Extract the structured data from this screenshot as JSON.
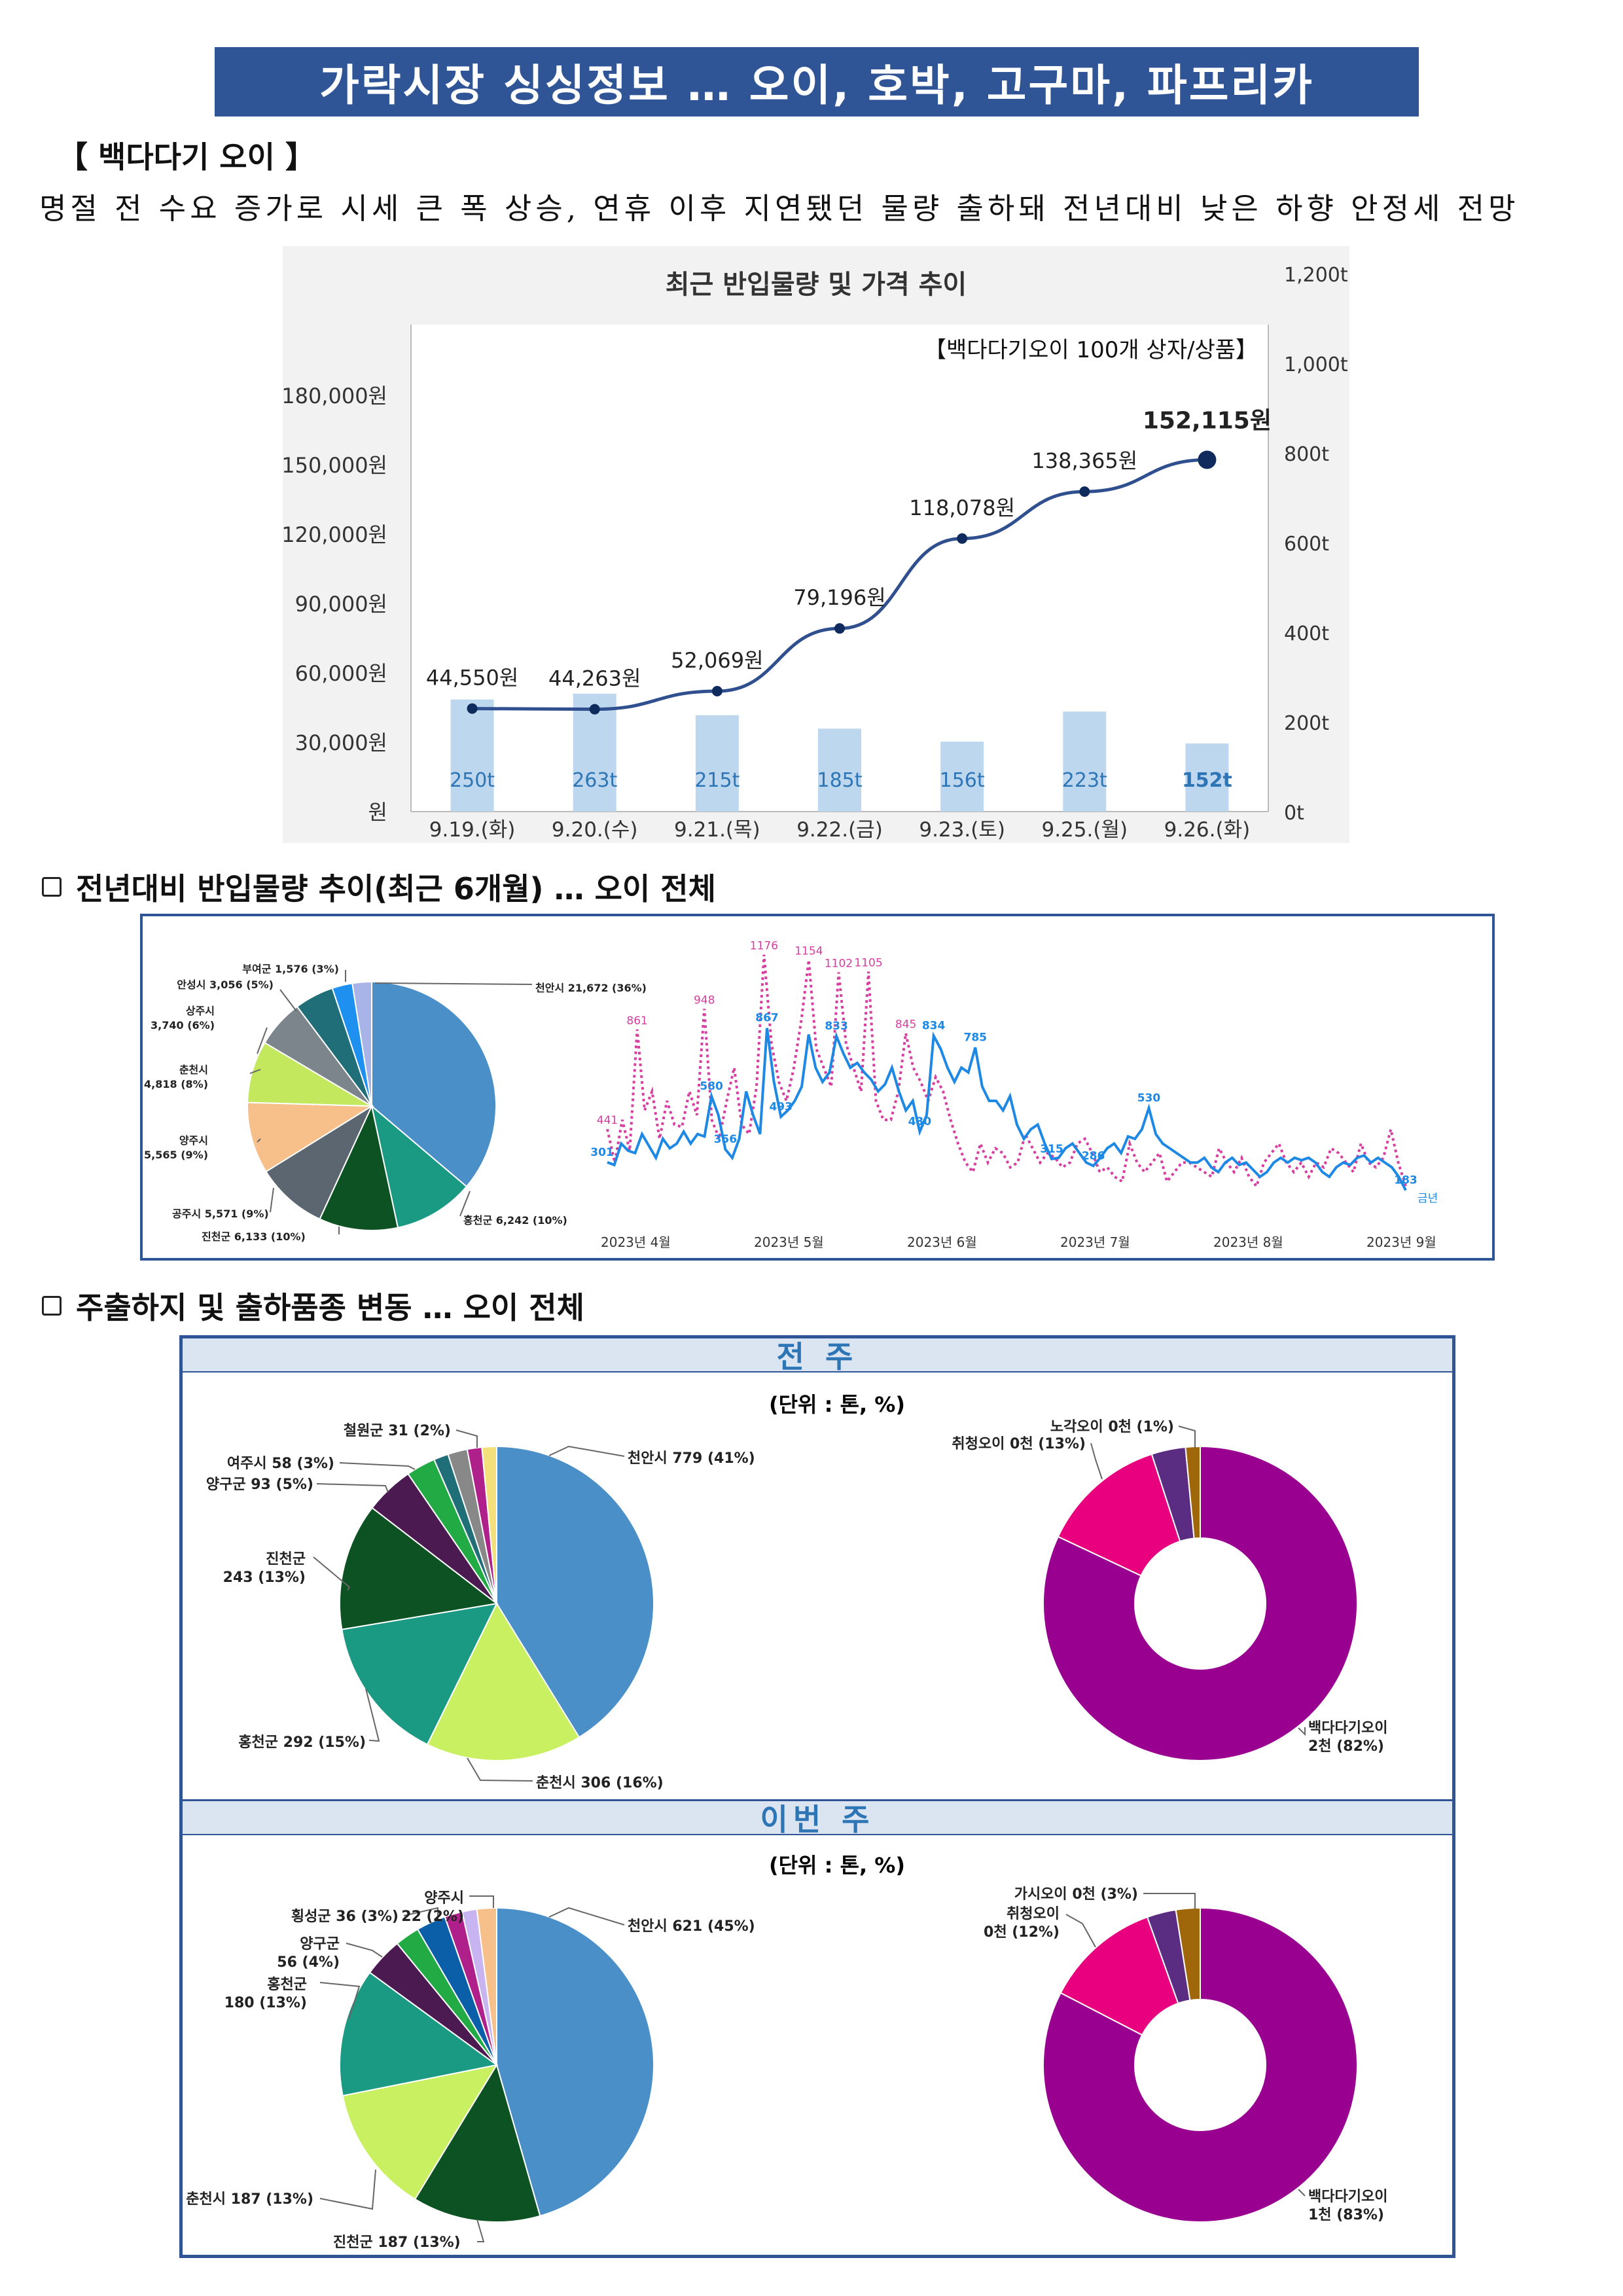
{
  "title": "가락시장 싱싱정보 … 오이, 호박, 고구마, 파프리카",
  "section1": {
    "heading": "【 백다다기 오이 】",
    "summary": "명절 전 수요 증가로 시세 큰 폭 상승, 연휴 이후 지연됐던 물량 출하돼 전년대비 낮은 하향 안정세 전망"
  },
  "section2": {
    "heading": "전년대비 반입물량 추이(최근 6개월) … 오이 전체"
  },
  "section3": {
    "heading": "주출하지 및 출하품종 변동 … 오이 전체",
    "prev_band": "전 주",
    "this_band": "이번 주",
    "unit_label": "(단위 : 톤, %)"
  },
  "colors": {
    "banner": "#2f5597",
    "price_line": "#2f4f8f",
    "volume_bar": "#bdd7ee",
    "line_blue": "#1e88e5",
    "line_pink": "#d63fa0",
    "donut_main": "#990090"
  },
  "chart_data": [
    {
      "type": "bar",
      "title": "최근 반입물량 및 가격 추이",
      "annotation": "【백다다기오이 100개 상자/상품】",
      "categories": [
        "9.19.(화)",
        "9.20.(수)",
        "9.21.(목)",
        "9.22.(금)",
        "9.23.(토)",
        "9.25.(월)",
        "9.26.(화)"
      ],
      "series": [
        {
          "name": "",
          "kind": "line",
          "axis": "left",
          "values": [
            44550,
            44263,
            52069,
            79196,
            118078,
            138365,
            152115
          ],
          "labels": [
            "44,550원",
            "44,263원",
            "52,069원",
            "79,196원",
            "118,078원",
            "138,365원",
            "152,115원"
          ]
        },
        {
          "name": "",
          "kind": "bar",
          "axis": "right",
          "values": [
            250,
            263,
            215,
            185,
            156,
            223,
            152
          ],
          "labels": [
            "250t",
            "263t",
            "215t",
            "185t",
            "156t",
            "223t",
            "152t"
          ]
        }
      ],
      "left_ticks": [
        "원",
        "30,000원",
        "60,000원",
        "90,000원",
        "120,000원",
        "150,000원",
        "180,000원"
      ],
      "left_range": [
        0,
        180000
      ],
      "right_ticks": [
        "0t",
        "200t",
        "400t",
        "600t",
        "800t",
        "1,000t",
        "1,200t"
      ],
      "right_range": [
        0,
        1200
      ]
    },
    {
      "type": "pie",
      "slices": [
        {
          "label": "천안시 21,672 (36%)",
          "value": 21672,
          "color": "#4a8fc7"
        },
        {
          "label": "홍천군 6,242 (10%)",
          "value": 6242,
          "color": "#1b9a83"
        },
        {
          "label": "진천군 6,133 (10%)",
          "value": 6133,
          "color": "#0d5222"
        },
        {
          "label": "공주시 5,571 (9%)",
          "value": 5571,
          "color": "#5b6670"
        },
        {
          "label": "양주시 5,565 (9%)",
          "value": 5565,
          "color": "#f7c08a"
        },
        {
          "label": "춘천시 4,818 (8%)",
          "value": 4818,
          "color": "#c3e85d"
        },
        {
          "label": "상주시 3,740 (6%)",
          "value": 3740,
          "color": "#7d858c"
        },
        {
          "label": "안성시 3,056 (5%)",
          "value": 3056,
          "color": "#1f6e78"
        },
        {
          "label": "부여군 1,576 (3%)",
          "value": 1576,
          "color": "#1e90f0"
        },
        {
          "label": "",
          "value": 1500,
          "color": "#a8b4e8"
        }
      ]
    },
    {
      "type": "line",
      "x_ticks": [
        "2023년 4월",
        "2023년 5월",
        "2023년 6월",
        "2023년 7월",
        "2023년 8월",
        "2023년 9월"
      ],
      "series": [
        {
          "name": "금년",
          "values": [
            301,
            290,
            380,
            350,
            340,
            420,
            370,
            320,
            400,
            360,
            380,
            430,
            380,
            420,
            410,
            580,
            500,
            356,
            320,
            400,
            600,
            500,
            420,
            867,
            640,
            493,
            520,
            560,
            620,
            840,
            700,
            640,
            680,
            833,
            760,
            700,
            720,
            680,
            650,
            600,
            630,
            700,
            600,
            520,
            560,
            430,
            500,
            834,
            780,
            700,
            640,
            700,
            680,
            785,
            620,
            560,
            560,
            520,
            580,
            460,
            400,
            440,
            460,
            380,
            315,
            320,
            360,
            380,
            340,
            300,
            286,
            320,
            360,
            380,
            340,
            410,
            400,
            440,
            530,
            420,
            380,
            360,
            340,
            320,
            300,
            300,
            320,
            280,
            260,
            300,
            320,
            290,
            300,
            270,
            240,
            260,
            300,
            320,
            300,
            320,
            310,
            320,
            300,
            260,
            240,
            280,
            300,
            290,
            320,
            330,
            300,
            320,
            300,
            280,
            240,
            183
          ],
          "labels": [
            {
              "i": 0,
              "text": "301"
            },
            {
              "i": 15,
              "text": "580"
            },
            {
              "i": 17,
              "text": "356"
            },
            {
              "i": 23,
              "text": "867"
            },
            {
              "i": 25,
              "text": "493"
            },
            {
              "i": 33,
              "text": "833"
            },
            {
              "i": 45,
              "text": "430"
            },
            {
              "i": 47,
              "text": "834"
            },
            {
              "i": 53,
              "text": "785"
            },
            {
              "i": 64,
              "text": "315"
            },
            {
              "i": 70,
              "text": "286"
            },
            {
              "i": 78,
              "text": "530"
            },
            {
              "i": 115,
              "text": "183"
            }
          ]
        },
        {
          "name": "",
          "values": [
            441,
            300,
            480,
            350,
            861,
            520,
            600,
            400,
            560,
            460,
            450,
            600,
            500,
            948,
            480,
            400,
            560,
            700,
            460,
            420,
            620,
            1176,
            800,
            640,
            560,
            700,
            900,
            1154,
            780,
            700,
            620,
            1102,
            800,
            700,
            600,
            1105,
            560,
            480,
            480,
            600,
            845,
            700,
            640,
            560,
            660,
            600,
            480,
            380,
            300,
            260,
            380,
            300,
            360,
            340,
            280,
            300,
            420,
            360,
            300,
            340,
            320,
            280,
            300,
            380,
            400,
            340,
            260,
            280,
            240,
            220,
            380,
            300,
            260,
            300,
            340,
            220,
            260,
            300,
            300,
            280,
            260,
            240,
            360,
            300,
            260,
            320,
            240,
            200,
            300,
            340,
            380,
            300,
            260,
            300,
            240,
            300,
            280,
            360,
            340,
            300,
            260,
            380,
            300,
            280,
            320,
            440,
            300,
            200
          ]
        }
      ]
    },
    {
      "type": "pie",
      "period": "전 주",
      "slices": [
        {
          "label": "천안시 779 (41%)",
          "value": 41,
          "color": "#4a8fc7"
        },
        {
          "label": "춘천시 306 (16%)",
          "value": 16,
          "color": "#c8f060"
        },
        {
          "label": "홍천군 292 (15%)",
          "value": 15,
          "color": "#1b9a83"
        },
        {
          "label": "진천군 243 (13%)",
          "value": 13,
          "color": "#0d5222"
        },
        {
          "label": "양구군 93 (5%)",
          "value": 5,
          "color": "#4a1a50"
        },
        {
          "label": "여주시 58 (3%)",
          "value": 3,
          "color": "#22aa44"
        },
        {
          "label": "",
          "value": 1.5,
          "color": "#1f6e78"
        },
        {
          "label": "철원군 31 (2%)",
          "value": 2,
          "color": "#888888"
        },
        {
          "label": "",
          "value": 1.5,
          "color": "#b0208a"
        },
        {
          "label": "",
          "value": 1.5,
          "color": "#f4e07a"
        }
      ]
    },
    {
      "type": "pie",
      "period": "전 주",
      "donut": true,
      "slices": [
        {
          "label": "백다다기오이 2천 (82%)",
          "value": 82,
          "color": "#990090"
        },
        {
          "label": "취청오이 0천 (13%)",
          "value": 13,
          "color": "#e8007e"
        },
        {
          "label": "",
          "value": 3.5,
          "color": "#5b2d82"
        },
        {
          "label": "노각오이 0천 (1%)",
          "value": 1.5,
          "color": "#a0660a"
        }
      ]
    },
    {
      "type": "pie",
      "period": "이번 주",
      "slices": [
        {
          "label": "천안시 621 (45%)",
          "value": 45,
          "color": "#4a8fc7"
        },
        {
          "label": "진천군 187 (13%)",
          "value": 13,
          "color": "#0d5222"
        },
        {
          "label": "춘천시 187 (13%)",
          "value": 13,
          "color": "#c8f060"
        },
        {
          "label": "홍천군 180 (13%)",
          "value": 13,
          "color": "#1b9a83"
        },
        {
          "label": "양구군 56 (4%)",
          "value": 4,
          "color": "#4a1a50"
        },
        {
          "label": "",
          "value": 2.5,
          "color": "#22aa44"
        },
        {
          "label": "횡성군 36 (3%)",
          "value": 3,
          "color": "#0b5fa8"
        },
        {
          "label": "",
          "value": 1.8,
          "color": "#b0208a"
        },
        {
          "label": "",
          "value": 1.5,
          "color": "#c8b4f0"
        },
        {
          "label": "양주시 22 (2%)",
          "value": 2,
          "color": "#f7c08a"
        }
      ]
    },
    {
      "type": "pie",
      "period": "이번 주",
      "donut": true,
      "slices": [
        {
          "label": "백다다기오이 1천 (83%)",
          "value": 83,
          "color": "#990090"
        },
        {
          "label": "취청오이 0천 (12%)",
          "value": 12,
          "color": "#e8007e"
        },
        {
          "label": "",
          "value": 3,
          "color": "#5b2d82"
        },
        {
          "label": "가시오이 0천 (3%)",
          "value": 2.5,
          "color": "#a0660a"
        }
      ]
    }
  ]
}
